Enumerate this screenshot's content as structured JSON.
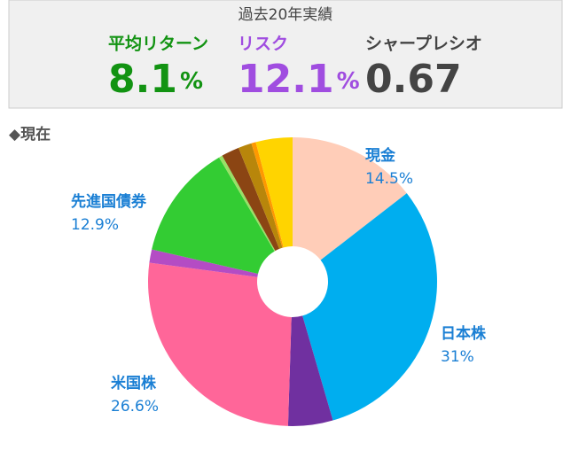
{
  "header": {
    "title": "過去20年実績",
    "stats": [
      {
        "label": "平均リターン",
        "value": "8.1",
        "unit": "%",
        "color": "#129312"
      },
      {
        "label": "リスク",
        "value": "12.1",
        "unit": "%",
        "color": "#a04de0"
      },
      {
        "label": "シャープレシオ",
        "value": "0.67",
        "color": "#444444"
      }
    ]
  },
  "section": "◆現在",
  "chart_data": {
    "type": "pie",
    "categories": [
      "現金",
      "日本株",
      null,
      "米国株",
      null,
      "先進国債券",
      null,
      null,
      null,
      null,
      null
    ],
    "values": [
      14.5,
      31,
      5,
      26.6,
      1.5,
      12.9,
      0.4,
      2,
      1.5,
      0.5,
      4.1
    ],
    "value_labels": [
      "14.5%",
      "31%",
      null,
      "26.6%",
      null,
      "12.9%",
      null,
      null,
      null,
      null,
      null
    ],
    "colors": [
      "#ffcdb8",
      "#00aeef",
      "#7030a0",
      "#ff6699",
      "#b44cc4",
      "#33cc33",
      "#99e066",
      "#8b4513",
      "#b8860b",
      "#ff9900",
      "#ffd400"
    ],
    "label_color": "#1a7fd4"
  }
}
